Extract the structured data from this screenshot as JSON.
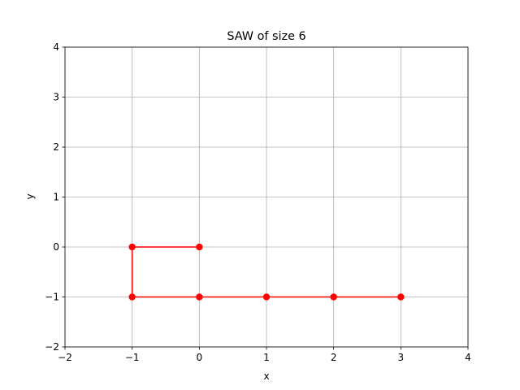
{
  "chart_data": {
    "type": "line",
    "title": "SAW of size 6",
    "xlabel": "x",
    "ylabel": "y",
    "xlim": [
      -2,
      4
    ],
    "ylim": [
      -2,
      4
    ],
    "xticks": [
      -2,
      -1,
      0,
      1,
      2,
      3,
      4
    ],
    "yticks": [
      -2,
      -1,
      0,
      1,
      2,
      3,
      4
    ],
    "grid": true,
    "series": [
      {
        "color": "#ff0000",
        "marker": "circle",
        "points": [
          {
            "x": 0,
            "y": 0
          },
          {
            "x": -1,
            "y": 0
          },
          {
            "x": -1,
            "y": -1
          },
          {
            "x": 0,
            "y": -1
          },
          {
            "x": 1,
            "y": -1
          },
          {
            "x": 2,
            "y": -1
          },
          {
            "x": 3,
            "y": -1
          }
        ]
      }
    ]
  }
}
